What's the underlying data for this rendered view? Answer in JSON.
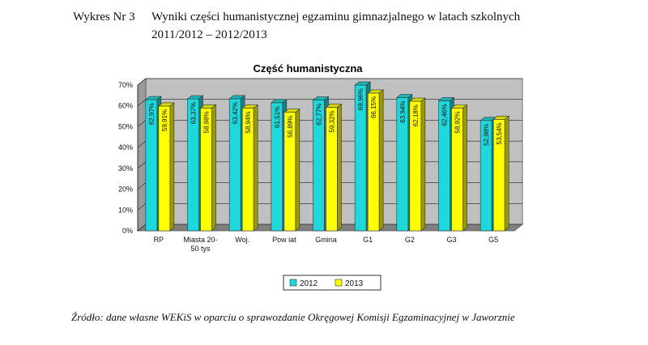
{
  "caption": {
    "label": "Wykres Nr 3",
    "text_line1": "Wyniki części humanistycznej egzaminu gimnazjalnego w latach szkolnych",
    "text_line2": "2011/2012 – 2012/2013"
  },
  "source": "Źródło: dane własne WEKiS w oparciu o sprawozdanie Okręgowej Komisji Egzaminacyjnej w Jaworznie",
  "colors": {
    "s2012": "#1fd8dc",
    "s2013": "#ffff00",
    "plot_bg": "#c0c0c0",
    "wall": "#9a9a9a"
  },
  "chart_data": {
    "type": "bar",
    "title": "Część humanistyczna",
    "xlabel": "",
    "ylabel": "",
    "ylim": [
      0,
      70
    ],
    "yticks": [
      "0%",
      "10%",
      "20%",
      "30%",
      "40%",
      "50%",
      "60%",
      "70%"
    ],
    "categories": [
      [
        "RP"
      ],
      [
        "Miasta 20-",
        "50 tys"
      ],
      [
        "Woj."
      ],
      [
        "Pow iat"
      ],
      [
        "Gmina"
      ],
      [
        "G1"
      ],
      [
        "G2"
      ],
      [
        "G3"
      ],
      [
        "G5"
      ]
    ],
    "series": [
      {
        "name": "2012",
        "values": [
          62.97,
          63.37,
          63.42,
          61.51,
          62.77,
          69.96,
          63.94,
          62.46,
          52.98
        ],
        "labels": [
          "62,97%",
          "63,37%",
          "63,42%",
          "61,51%",
          "62,77%",
          "69,96%",
          "63,94%",
          "62,46%",
          "52,98%"
        ]
      },
      {
        "name": "2013",
        "values": [
          59.91,
          58.98,
          58.94,
          56.89,
          59.32,
          66.15,
          62.18,
          58.92,
          53.54
        ],
        "labels": [
          "59,91%",
          "58,98%",
          "58,94%",
          "56,89%",
          "59,32%",
          "66,15%",
          "62,18%",
          "58,92%",
          "53,54%"
        ]
      }
    ],
    "legend_position": "bottom",
    "grid": true
  }
}
